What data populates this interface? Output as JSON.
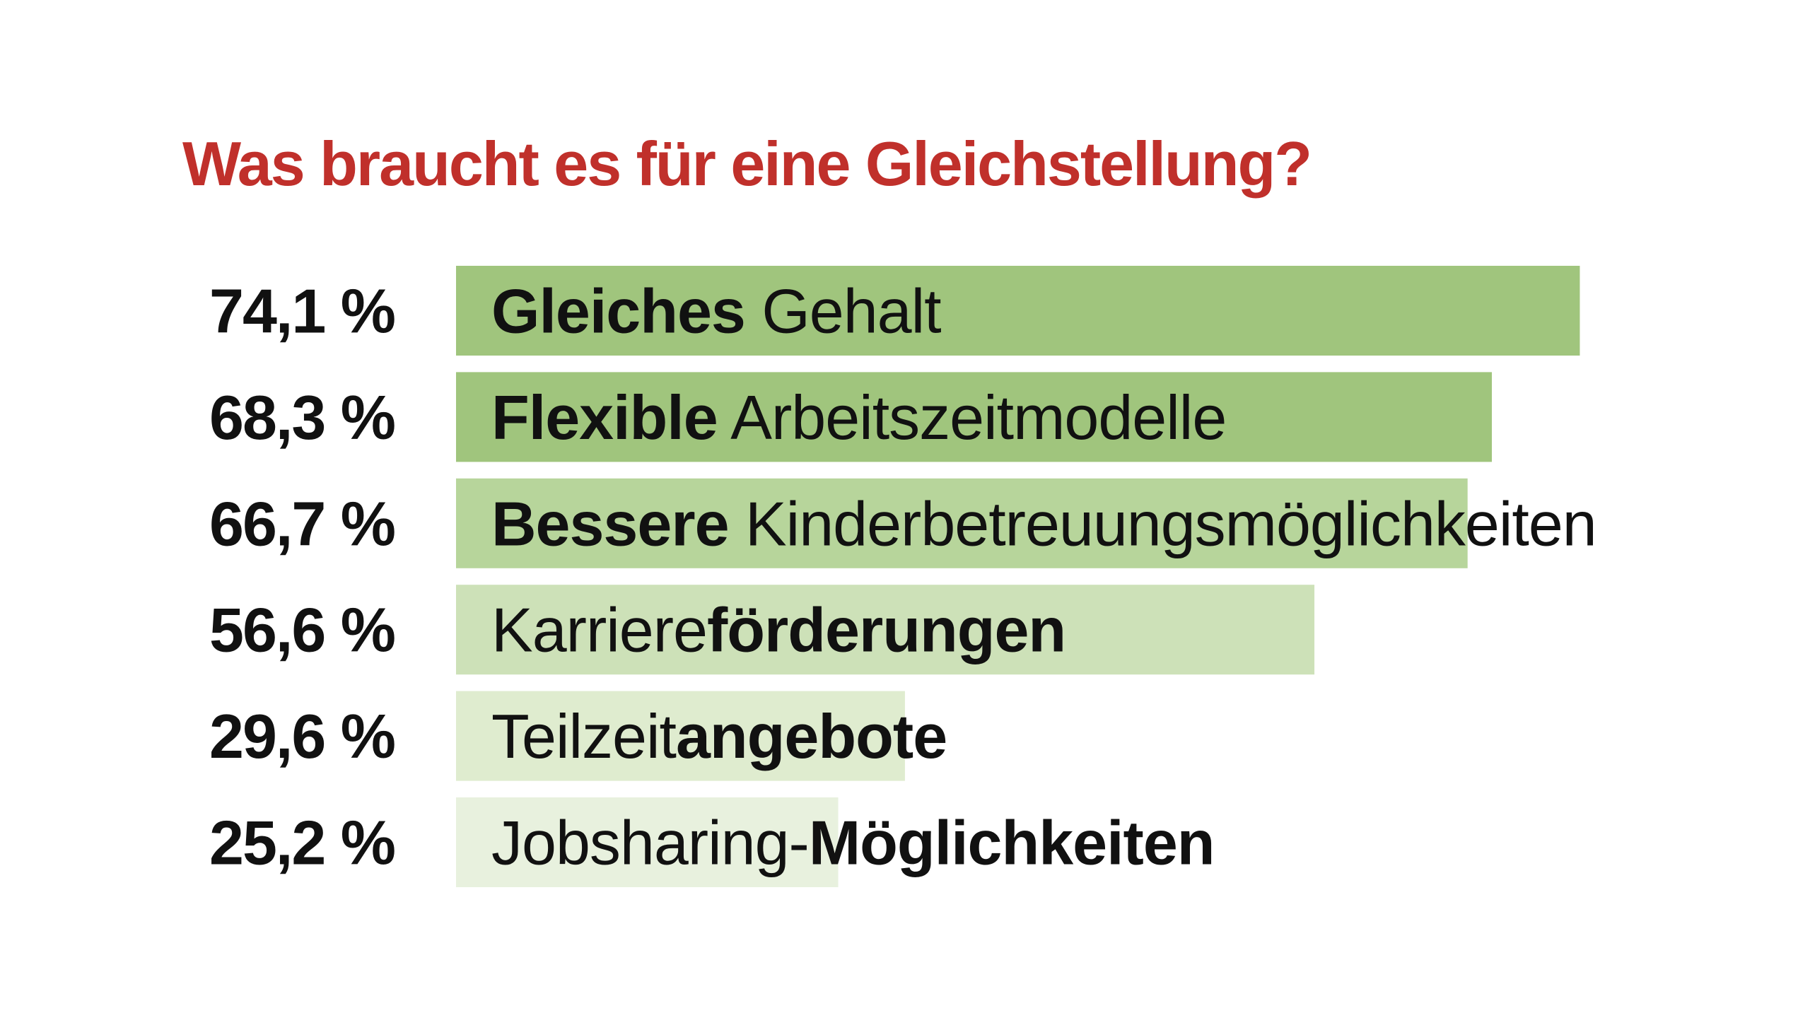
{
  "chart_data": {
    "type": "bar",
    "orientation": "horizontal",
    "title": "Was braucht es für eine Gleichstellung?",
    "unit": "%",
    "categories": [
      "Gleiches Gehalt",
      "Flexible Arbeitszeitmodelle",
      "Bessere Kinderbetreuungsmöglichkeiten",
      "Karriereförderungen",
      "Teilzeitangebote",
      "Jobsharing-Möglichkeiten"
    ],
    "category_parts": [
      [
        {
          "text": "Gleiches",
          "bold": true
        },
        {
          "text": " Gehalt",
          "bold": false
        }
      ],
      [
        {
          "text": "Flexible",
          "bold": true
        },
        {
          "text": " Arbeitszeitmodelle",
          "bold": false
        }
      ],
      [
        {
          "text": "Bessere",
          "bold": true
        },
        {
          "text": " Kinderbetreuungsmöglichkeiten",
          "bold": false
        }
      ],
      [
        {
          "text": "Karriere",
          "bold": false
        },
        {
          "text": "förderungen",
          "bold": true
        }
      ],
      [
        {
          "text": "Teilzeit",
          "bold": false
        },
        {
          "text": "angebote",
          "bold": true
        }
      ],
      [
        {
          "text": "Jobsharing-",
          "bold": false
        },
        {
          "text": "Möglichkeiten",
          "bold": true
        }
      ]
    ],
    "values": [
      74.1,
      68.3,
      66.7,
      56.6,
      29.6,
      25.2
    ],
    "value_labels": [
      "74,1 %",
      "68,3 %",
      "66,7 %",
      "56,6 %",
      "29,6 %",
      "25,2 %"
    ],
    "xlim": [
      0,
      100
    ],
    "bar_colors": [
      "#a0c57d",
      "#a0c57d",
      "#b7d59b",
      "#cde1b8",
      "#dfeccf",
      "#e8f1de"
    ],
    "grid": false,
    "legend": "none"
  },
  "colors": {
    "title": "#c0302b",
    "text": "#111111",
    "background": "#ffffff"
  }
}
